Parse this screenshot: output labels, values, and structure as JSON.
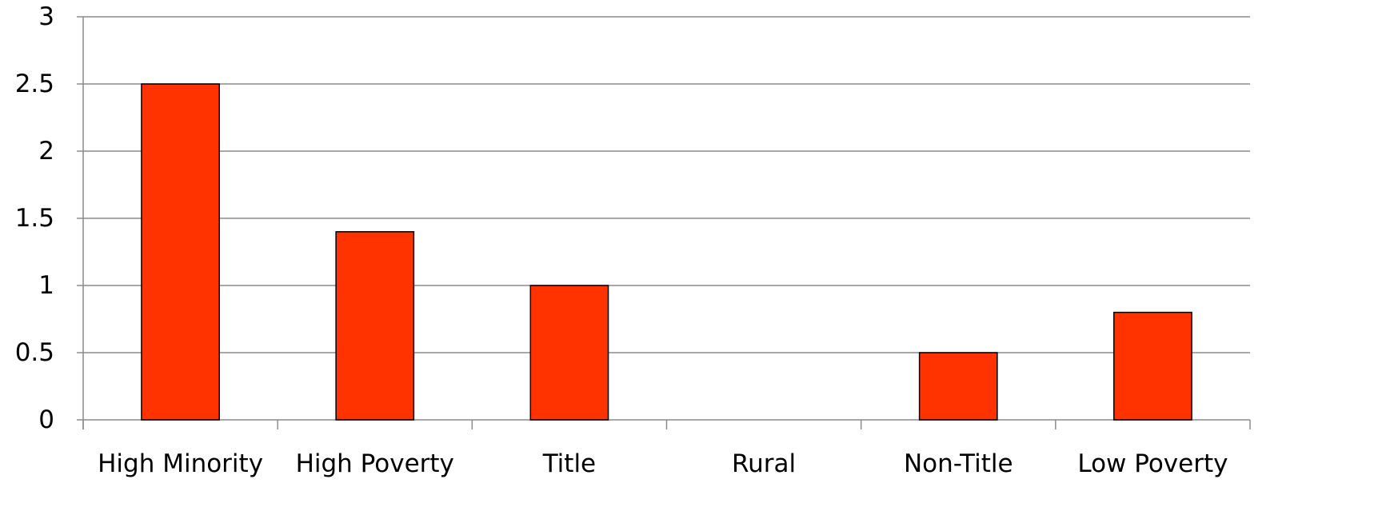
{
  "chart_data": {
    "type": "bar",
    "categories": [
      "High Minority",
      "High Poverty",
      "Title",
      "Rural",
      "Non-Title",
      "Low Poverty"
    ],
    "values": [
      2.5,
      1.4,
      1.0,
      0,
      0.5,
      0.8
    ],
    "y_ticks": [
      "0",
      "0.5",
      "1",
      "1.5",
      "2",
      "2.5",
      "3"
    ],
    "ylim": [
      0,
      3
    ],
    "grid": true,
    "legend": "none",
    "bar_color": "#FF3300",
    "bar_outline_color": "#000000",
    "grid_color": "#8C8C8C",
    "axis_color": "#8C8C8C"
  }
}
